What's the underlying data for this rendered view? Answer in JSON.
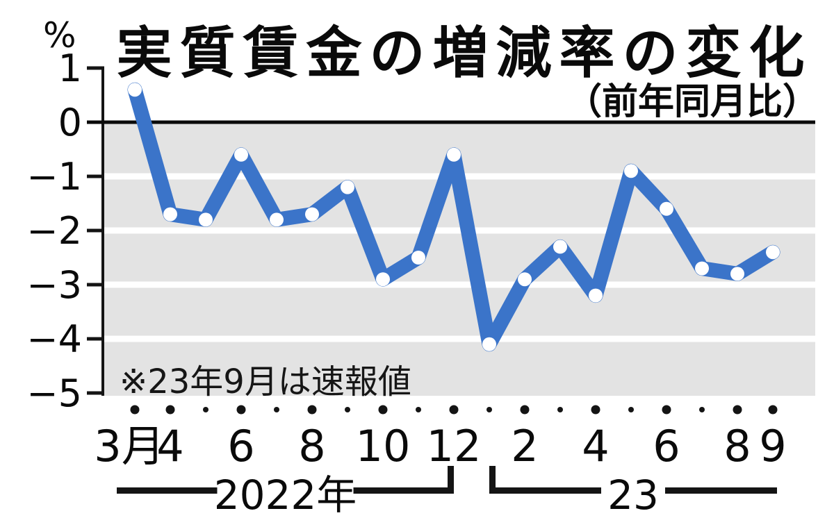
{
  "chart": {
    "title": "実質賃金の増減率の変化",
    "subtitle": "（前年同月比）",
    "unit_label": "%",
    "note": "※23年9月は速報値"
  },
  "chart_data": {
    "type": "line",
    "title": "実質賃金の増減率の変化",
    "subtitle": "（前年同月比）",
    "ylabel": "%",
    "ylim": [
      -5,
      1
    ],
    "y_ticks": [
      1,
      0,
      -1,
      -2,
      -3,
      -4,
      -5
    ],
    "y_tick_labels": [
      "1",
      "0",
      "−1",
      "−2",
      "−3",
      "−4",
      "−5"
    ],
    "grid": "white horizontal stripes on gray bands below zero line",
    "note": "※23年9月は速報値",
    "line_color": "#3b74c9",
    "marker": "white dot",
    "x_groups": [
      {
        "label": "2022年",
        "start_index": 0,
        "end_index": 9
      },
      {
        "label": "23",
        "start_index": 10,
        "end_index": 18
      }
    ],
    "series": [
      {
        "name": "実質賃金の増減率（前年同月比）",
        "points": [
          {
            "period": "2022-03",
            "x_label": "3月",
            "dot": "big",
            "value": 0.6
          },
          {
            "period": "2022-04",
            "x_label": "4",
            "dot": "big",
            "value": -1.7
          },
          {
            "period": "2022-05",
            "x_label": "",
            "dot": "small",
            "value": -1.8
          },
          {
            "period": "2022-06",
            "x_label": "6",
            "dot": "big",
            "value": -0.6
          },
          {
            "period": "2022-07",
            "x_label": "",
            "dot": "small",
            "value": -1.8
          },
          {
            "period": "2022-08",
            "x_label": "8",
            "dot": "big",
            "value": -1.7
          },
          {
            "period": "2022-09",
            "x_label": "",
            "dot": "small",
            "value": -1.2
          },
          {
            "period": "2022-10",
            "x_label": "10",
            "dot": "big",
            "value": -2.9
          },
          {
            "period": "2022-11",
            "x_label": "",
            "dot": "small",
            "value": -2.5
          },
          {
            "period": "2022-12",
            "x_label": "12",
            "dot": "big",
            "value": -0.6
          },
          {
            "period": "2023-01",
            "x_label": "",
            "dot": "small",
            "value": -4.1
          },
          {
            "period": "2023-02",
            "x_label": "2",
            "dot": "big",
            "value": -2.9
          },
          {
            "period": "2023-03",
            "x_label": "",
            "dot": "small",
            "value": -2.3
          },
          {
            "period": "2023-04",
            "x_label": "4",
            "dot": "big",
            "value": -3.2
          },
          {
            "period": "2023-05",
            "x_label": "",
            "dot": "small",
            "value": -0.9
          },
          {
            "period": "2023-06",
            "x_label": "6",
            "dot": "big",
            "value": -1.6
          },
          {
            "period": "2023-07",
            "x_label": "",
            "dot": "small",
            "value": -2.7
          },
          {
            "period": "2023-08",
            "x_label": "8",
            "dot": "big",
            "value": -2.8
          },
          {
            "period": "2023-09",
            "x_label": "9",
            "dot": "big",
            "value": -2.4
          }
        ]
      }
    ]
  }
}
